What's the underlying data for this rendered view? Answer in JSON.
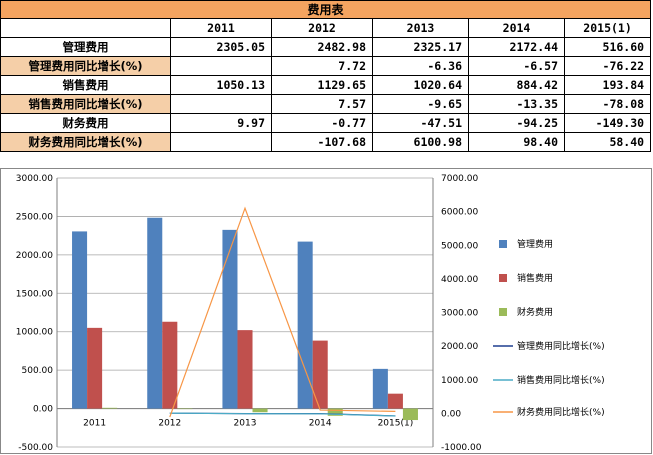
{
  "table": {
    "title": "费用表",
    "years": [
      "2011",
      "2012",
      "2013",
      "2014",
      "2015(1)"
    ],
    "rows": [
      {
        "label": "管理费用",
        "values": [
          "2305.05",
          "2482.98",
          "2325.17",
          "2172.44",
          "516.60"
        ]
      },
      {
        "label": "管理费用同比增长(%)",
        "values": [
          "",
          "7.72",
          "-6.36",
          "-6.57",
          "-76.22"
        ]
      },
      {
        "label": "销售费用",
        "values": [
          "1050.13",
          "1129.65",
          "1020.64",
          "884.42",
          "193.84"
        ]
      },
      {
        "label": "销售费用同比增长(%)",
        "values": [
          "",
          "7.57",
          "-9.65",
          "-13.35",
          "-78.08"
        ]
      },
      {
        "label": "财务费用",
        "values": [
          "9.97",
          "-0.77",
          "-47.51",
          "-94.25",
          "-149.30"
        ]
      },
      {
        "label": "财务费用同比增长(%)",
        "values": [
          "",
          "-107.68",
          "6100.98",
          "98.40",
          "58.40"
        ]
      }
    ]
  },
  "chart_data": {
    "type": "bar",
    "categories": [
      "2011",
      "2012",
      "2013",
      "2014",
      "2015(1)"
    ],
    "y_left": {
      "min": -500,
      "max": 3000,
      "step": 500,
      "ticks": [
        "-500.00",
        "0.00",
        "500.00",
        "1000.00",
        "1500.00",
        "2000.00",
        "2500.00",
        "3000.00"
      ]
    },
    "y_right": {
      "min": -1000,
      "max": 7000,
      "step": 1000,
      "ticks": [
        "-1000.00",
        "0.00",
        "1000.00",
        "2000.00",
        "3000.00",
        "4000.00",
        "5000.00",
        "6000.00",
        "7000.00"
      ]
    },
    "grid": true,
    "legend_position": "right",
    "series": [
      {
        "name": "管理费用",
        "kind": "bar",
        "axis": "left",
        "color": "#4f81bd",
        "values": [
          2305.05,
          2482.98,
          2325.17,
          2172.44,
          516.6
        ]
      },
      {
        "name": "销售费用",
        "kind": "bar",
        "axis": "left",
        "color": "#c0504d",
        "values": [
          1050.13,
          1129.65,
          1020.64,
          884.42,
          193.84
        ]
      },
      {
        "name": "财务费用",
        "kind": "bar",
        "axis": "left",
        "color": "#9bbb59",
        "values": [
          9.97,
          -0.77,
          -47.51,
          -94.25,
          -149.3
        ]
      },
      {
        "name": "管理费用同比增长(%)",
        "kind": "line",
        "axis": "right",
        "color": "#1f3f8f",
        "values": [
          null,
          7.72,
          -6.36,
          -6.57,
          -76.22
        ]
      },
      {
        "name": "销售费用同比增长(%)",
        "kind": "line",
        "axis": "right",
        "color": "#4bacc6",
        "values": [
          null,
          7.57,
          -9.65,
          -13.35,
          -78.08
        ]
      },
      {
        "name": "财务费用同比增长(%)",
        "kind": "line",
        "axis": "right",
        "color": "#f79646",
        "values": [
          null,
          -107.68,
          6100.98,
          98.4,
          58.4
        ]
      }
    ]
  }
}
